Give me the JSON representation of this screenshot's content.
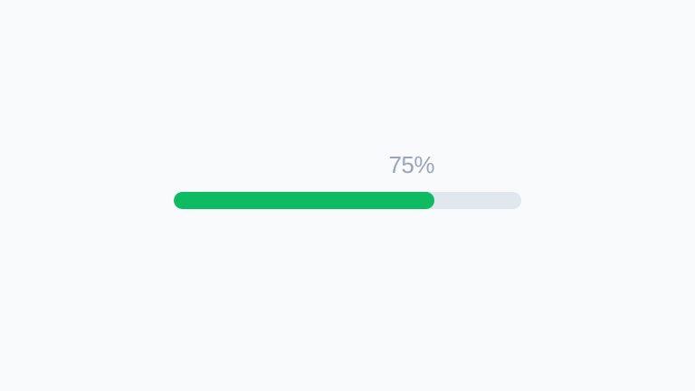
{
  "progress": {
    "percent": 75,
    "label": "75%",
    "colors": {
      "background": "#f8fafc",
      "track": "#e0e7ef",
      "fill": "#0cbb62",
      "label_text": "#9aa5ba"
    }
  }
}
